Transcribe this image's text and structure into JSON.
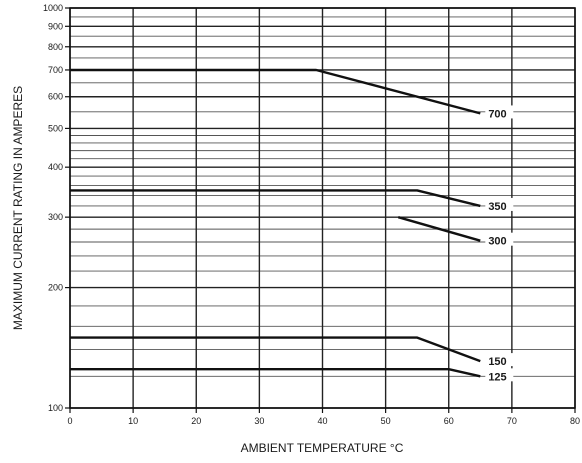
{
  "chart_data": {
    "type": "line",
    "xlabel": "AMBIENT TEMPERATURE °C",
    "ylabel": "MAXIMUM CURRENT RATING IN AMPERES",
    "xlim": [
      0,
      80
    ],
    "ylim": [
      100,
      1000
    ],
    "y_scale": "log",
    "grid": true,
    "x_ticks": [
      0,
      10,
      20,
      30,
      40,
      50,
      60,
      70,
      80
    ],
    "x_tick_labels": [
      "0",
      "10",
      "20",
      "30",
      "40",
      "50",
      "60",
      "70",
      "80"
    ],
    "y_ticks": [
      100,
      200,
      300,
      400,
      500,
      600,
      700,
      800,
      900,
      1000
    ],
    "y_tick_labels": [
      "100",
      "200",
      "300",
      "400",
      "500",
      "600",
      "700",
      "800",
      "900",
      "1000"
    ],
    "series": [
      {
        "name": "700",
        "x": [
          0,
          39,
          65
        ],
        "y": [
          700,
          700,
          545
        ]
      },
      {
        "name": "350",
        "x": [
          0,
          55,
          65
        ],
        "y": [
          350,
          350,
          320
        ]
      },
      {
        "name": "300",
        "x": [
          52,
          65
        ],
        "y": [
          300,
          262
        ]
      },
      {
        "name": "150",
        "x": [
          0,
          55,
          65
        ],
        "y": [
          150,
          150,
          131
        ]
      },
      {
        "name": "125",
        "x": [
          0,
          60,
          65
        ],
        "y": [
          125,
          125,
          120
        ]
      }
    ]
  }
}
